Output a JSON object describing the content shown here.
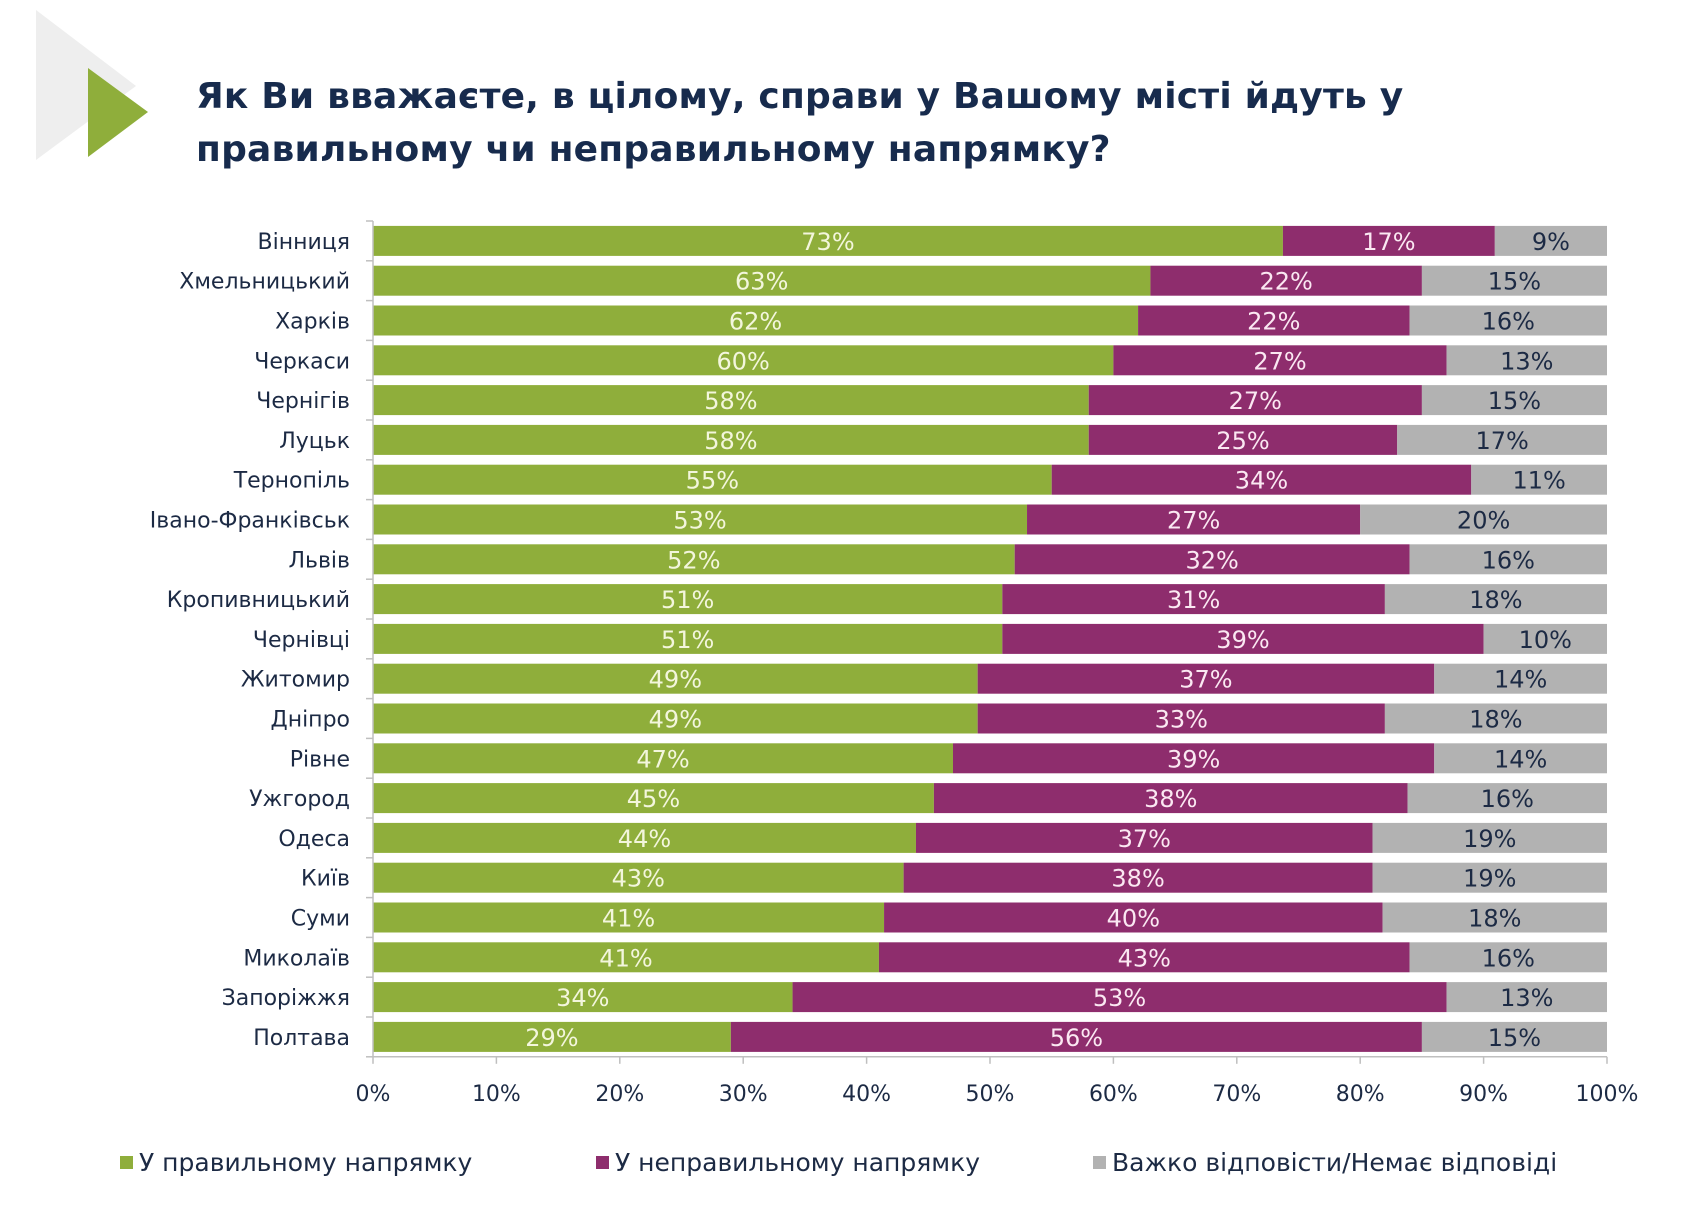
{
  "header": {
    "title_lines": [
      "Як Ви вважаєте, в цілому, справи у Вашому місті йдуть у",
      "правильному чи неправильному напрямку?"
    ],
    "decoration": "play-arrow-icon"
  },
  "colors": {
    "right_direction": "#8fae3b",
    "wrong_direction": "#8e2d6d",
    "hard_to_answer": "#b2b2b2",
    "arrow_green": "#8fae3b",
    "arrow_gray": "#eeeeee",
    "label_on_green": "#f3f6dc",
    "label_on_magenta": "#fbe8f2",
    "label_on_gray": "#1c2a44"
  },
  "chart_data": {
    "type": "bar",
    "orientation": "horizontal",
    "stacked": "percent",
    "title": "Як Ви вважаєте, в цілому, справи у Вашому місті йдуть у правильному чи неправильному напрямку?",
    "xlabel": "",
    "ylabel": "",
    "xlim": [
      0,
      100
    ],
    "x_ticks": [
      "0%",
      "10%",
      "20%",
      "30%",
      "40%",
      "50%",
      "60%",
      "70%",
      "80%",
      "90%",
      "100%"
    ],
    "grid": false,
    "legend_position": "bottom",
    "categories": [
      "Вінниця",
      "Хмельницький",
      "Харків",
      "Черкаси",
      "Чернігів",
      "Луцьк",
      "Тернопіль",
      "Івано-Франківськ",
      "Львів",
      "Кропивницький",
      "Чернівці",
      "Житомир",
      "Дніпро",
      "Рівне",
      "Ужгород",
      "Одеса",
      "Київ",
      "Суми",
      "Миколаїв",
      "Запоріжжя",
      "Полтава"
    ],
    "series": [
      {
        "name": "У правильному напрямку",
        "values": [
          73,
          63,
          62,
          60,
          58,
          58,
          55,
          53,
          52,
          51,
          51,
          49,
          49,
          47,
          45,
          44,
          43,
          41,
          41,
          34,
          29
        ]
      },
      {
        "name": "У неправильному напрямку",
        "values": [
          17,
          22,
          22,
          27,
          27,
          25,
          34,
          27,
          32,
          31,
          39,
          37,
          33,
          39,
          38,
          37,
          38,
          40,
          43,
          53,
          56
        ]
      },
      {
        "name": "Важко відповісти/Немає відповіді",
        "values": [
          9,
          15,
          16,
          13,
          15,
          17,
          11,
          20,
          16,
          18,
          10,
          14,
          18,
          14,
          16,
          19,
          19,
          18,
          16,
          13,
          15
        ]
      }
    ],
    "value_suffix": "%"
  }
}
